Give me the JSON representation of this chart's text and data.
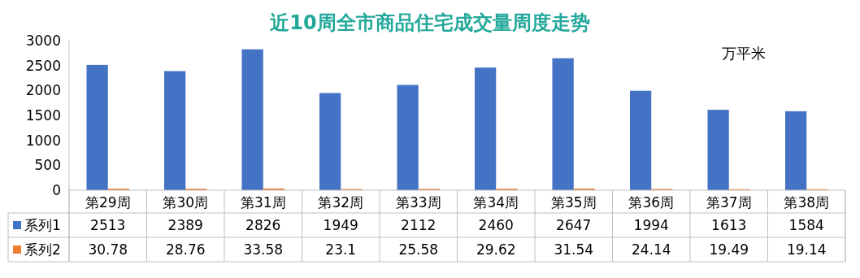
{
  "chart_data": {
    "type": "bar",
    "title": "近10周全市商品住宅成交量周度走势",
    "categories": [
      "第29周",
      "第30周",
      "第31周",
      "第32周",
      "第33周",
      "第34周",
      "第35周",
      "第36周",
      "第37周",
      "第38周"
    ],
    "series": [
      {
        "name": "系列1",
        "color": "#4472c4",
        "values": [
          2513,
          2389,
          2826,
          1949,
          2112,
          2460,
          2647,
          1994,
          1613,
          1584
        ]
      },
      {
        "name": "系列2",
        "color": "#ed7d31",
        "values": [
          30.78,
          28.76,
          33.58,
          23.1,
          25.58,
          29.62,
          31.54,
          24.14,
          19.49,
          19.14
        ]
      }
    ],
    "ylim": [
      0,
      3000
    ],
    "yticks": [
      0,
      500,
      1000,
      1500,
      2000,
      2500,
      3000
    ],
    "data_labels": true,
    "legend": "bottom",
    "annotations": [
      "万平米"
    ]
  }
}
